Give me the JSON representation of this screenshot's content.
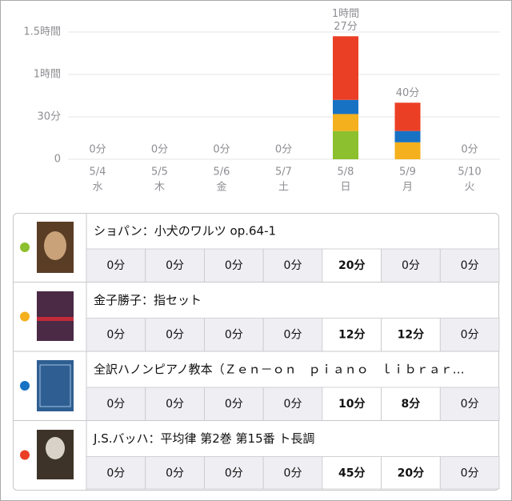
{
  "chart_data": {
    "type": "stacked-bar",
    "categories": [
      "5/4",
      "5/5",
      "5/6",
      "5/7",
      "5/8",
      "5/9",
      "5/10"
    ],
    "weekdays": [
      "水",
      "木",
      "金",
      "土",
      "日",
      "月",
      "火"
    ],
    "ylim": [
      0,
      90
    ],
    "yticks": [
      0,
      {
        "value": 30,
        "label": "30分"
      },
      {
        "value": 60,
        "label": "1時間"
      },
      {
        "value": 90,
        "label": "1.5時間"
      }
    ],
    "grid": true,
    "totals": [
      0,
      0,
      0,
      0,
      87,
      40,
      0
    ],
    "total_labels": [
      "0分",
      "0分",
      "0分",
      "0分",
      [
        "1時間",
        "27分"
      ],
      "40分",
      "0分"
    ],
    "series": [
      {
        "name": "ショパン：小犬のワルツ op.64-1",
        "color": "#8dc02e",
        "values": [
          0,
          0,
          0,
          0,
          20,
          0,
          0
        ],
        "value_labels": [
          "0分",
          "0分",
          "0分",
          "0分",
          "20分",
          "0分",
          "0分"
        ]
      },
      {
        "name": "金子勝子：指セット",
        "color": "#f5b01d",
        "values": [
          0,
          0,
          0,
          0,
          12,
          12,
          0
        ],
        "value_labels": [
          "0分",
          "0分",
          "0分",
          "0分",
          "12分",
          "12分",
          "0分"
        ]
      },
      {
        "name": "全訳ハノンピアノ教本（Ｚｅｎ－ｏｎ　ｐｉａｎｏ　ｌｉｂｒａｒ…",
        "color": "#1872c4",
        "values": [
          0,
          0,
          0,
          0,
          10,
          8,
          0
        ],
        "value_labels": [
          "0分",
          "0分",
          "0分",
          "0分",
          "10分",
          "8分",
          "0分"
        ]
      },
      {
        "name": "J.S.バッハ：平均律 第2巻 第15番 ト長調",
        "color": "#ea3f25",
        "values": [
          0,
          0,
          0,
          0,
          45,
          20,
          0
        ],
        "value_labels": [
          "0分",
          "0分",
          "0分",
          "0分",
          "45分",
          "20分",
          "0分"
        ]
      }
    ]
  }
}
